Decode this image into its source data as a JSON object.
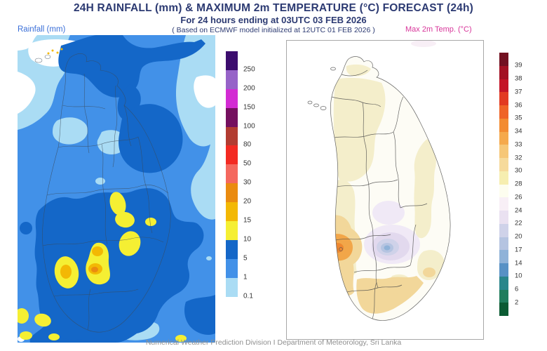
{
  "header": {
    "title": "24H RAINFALL (mm) & MAXIMUM 2m TEMPERATURE (°C) FORECAST (24h)",
    "subtitle": "For 24 hours ending at 03UTC 03 FEB 2026",
    "model_note": "( Based on ECMWF model initialized at 12UTC 01 FEB 2026 )"
  },
  "rainfall_panel": {
    "label": "Rainfall (mm)",
    "label_color": "#3a6fd8",
    "legend": [
      {
        "color": "#3c0d6e",
        "label": "250"
      },
      {
        "color": "#9663c8",
        "label": "200"
      },
      {
        "color": "#d32bd3",
        "label": "150"
      },
      {
        "color": "#75105f",
        "label": "100"
      },
      {
        "color": "#b23c31",
        "label": "80"
      },
      {
        "color": "#f32a22",
        "label": "50"
      },
      {
        "color": "#f4685e",
        "label": "30"
      },
      {
        "color": "#ea8b10",
        "label": "20"
      },
      {
        "color": "#f3b804",
        "label": "15"
      },
      {
        "color": "#f5ef33",
        "label": "10"
      },
      {
        "color": "#1467c8",
        "label": "5"
      },
      {
        "color": "#4291e8",
        "label": "1"
      },
      {
        "color": "#aadcf4",
        "label": "0.1"
      }
    ]
  },
  "temperature_panel": {
    "label": "Max 2m Temp. (°C)",
    "label_color": "#d8359a",
    "legend": [
      {
        "color": "#721021",
        "label": "39"
      },
      {
        "color": "#a31123",
        "label": "38"
      },
      {
        "color": "#c41426",
        "label": "37"
      },
      {
        "color": "#e23a22",
        "label": "36"
      },
      {
        "color": "#ef6428",
        "label": "35"
      },
      {
        "color": "#f38b31",
        "label": "34"
      },
      {
        "color": "#f5a94c",
        "label": "33"
      },
      {
        "color": "#f6c777",
        "label": "32"
      },
      {
        "color": "#f6da9b",
        "label": "30"
      },
      {
        "color": "#f6eeb0",
        "label": "28"
      },
      {
        "color": "#fdfdef",
        "label": "26"
      },
      {
        "color": "#f8eff6",
        "label": "24"
      },
      {
        "color": "#eae1f1",
        "label": "22"
      },
      {
        "color": "#cfd2e9",
        "label": "20"
      },
      {
        "color": "#b5c4e1",
        "label": "17"
      },
      {
        "color": "#8fb2d8",
        "label": "14"
      },
      {
        "color": "#5891c5",
        "label": "10"
      },
      {
        "color": "#2a868b",
        "label": "6"
      },
      {
        "color": "#1f7d5c",
        "label": "2"
      },
      {
        "color": "#0b5b33",
        "label": ""
      }
    ]
  },
  "footer": {
    "credit": "Numerical Weather Prediction Division I Department of Meteorology, Sri Lanka"
  }
}
